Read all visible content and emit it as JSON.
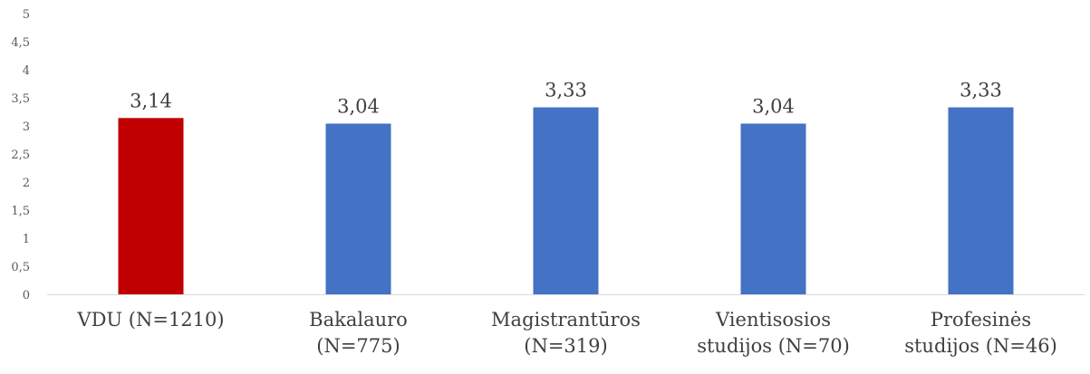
{
  "chart_data": {
    "type": "bar",
    "categories": [
      [
        "VDU (N=1210)"
      ],
      [
        "Bakalauro",
        "(N=775)"
      ],
      [
        "Magistrantūros",
        "(N=319)"
      ],
      [
        "Vientisosios",
        "studijos (N=70)"
      ],
      [
        "Profesinės",
        "studijos (N=46)"
      ]
    ],
    "values": [
      3.14,
      3.04,
      3.33,
      3.04,
      3.33
    ],
    "data_labels": [
      "3,14",
      "3,04",
      "3,33",
      "3,04",
      "3,33"
    ],
    "colors": [
      "#C00000",
      "#4472C4",
      "#4472C4",
      "#4472C4",
      "#4472C4"
    ],
    "ylim": [
      0,
      5
    ],
    "yticks": [
      0,
      0.5,
      1,
      1.5,
      2,
      2.5,
      3,
      3.5,
      4,
      4.5,
      5
    ],
    "ytick_labels": [
      "0",
      "0,5",
      "1",
      "1,5",
      "2",
      "2,5",
      "3",
      "3,5",
      "4",
      "4,5",
      "5"
    ],
    "grid": false,
    "legend": "none",
    "axis_color": "#D9D9D9"
  }
}
